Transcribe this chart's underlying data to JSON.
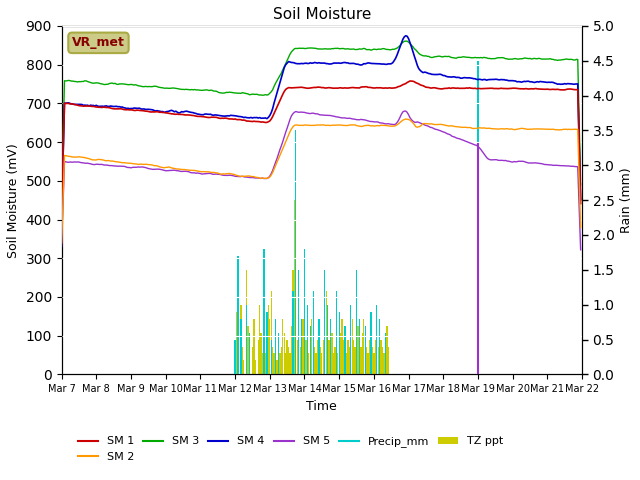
{
  "title": "Soil Moisture",
  "xlabel": "Time",
  "ylabel_left": "Soil Moisture (mV)",
  "ylabel_right": "Rain (mm)",
  "ylim_left": [
    0,
    900
  ],
  "ylim_right": [
    0,
    5.0
  ],
  "yticks_left": [
    0,
    100,
    200,
    300,
    400,
    500,
    600,
    700,
    800,
    900
  ],
  "yticks_right": [
    0.0,
    0.5,
    1.0,
    1.5,
    2.0,
    2.5,
    3.0,
    3.5,
    4.0,
    4.5,
    5.0
  ],
  "colors": {
    "SM1": "#cc0000",
    "SM2": "#ff9900",
    "SM3": "#00aa00",
    "SM4": "#0000cc",
    "SM5": "#9933cc",
    "Precip_mm": "#00cccc",
    "TZ_ppt": "#cccc00"
  },
  "fig_bg": "#ffffff",
  "plot_bg": "#e8e8e8",
  "grid_color": "#ffffff",
  "vr_met_box_facecolor": "#cccc88",
  "vr_met_box_edgecolor": "#aaaa44",
  "vr_met_text_color": "#880000",
  "n_points": 360,
  "xtick_labels": [
    "Mar 7",
    "Mar 8",
    "Mar 9",
    "Mar 10",
    "Mar 11",
    "Mar 12",
    "Mar 13",
    "Mar 14",
    "Mar 15",
    "Mar 16",
    "Mar 17",
    "Mar 18",
    "Mar 19",
    "Mar 20",
    "Mar 21",
    "Mar 22"
  ],
  "xtick_positions": [
    0,
    24,
    48,
    72,
    96,
    120,
    144,
    168,
    192,
    216,
    240,
    264,
    288,
    312,
    336,
    360
  ]
}
